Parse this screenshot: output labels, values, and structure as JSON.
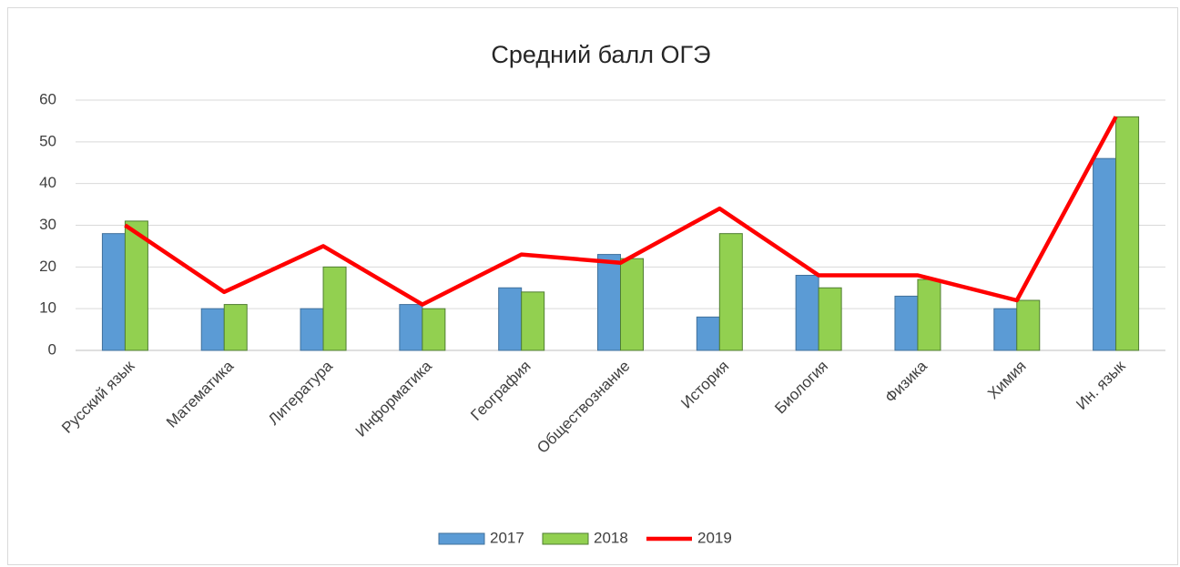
{
  "chart_data": {
    "type": "bar",
    "title": "Средний балл ОГЭ",
    "categories": [
      "Русский язык",
      "Математика",
      "Литература",
      "Информатика",
      "География",
      "Обществознание",
      "История",
      "Биология",
      "Физика",
      "Химия",
      "Ин. язык"
    ],
    "series": [
      {
        "name": "2017",
        "type": "bar",
        "color": "#5b9bd5",
        "values": [
          28,
          10,
          10,
          11,
          15,
          23,
          8,
          18,
          13,
          10,
          46
        ]
      },
      {
        "name": "2018",
        "type": "bar",
        "color": "#92d050",
        "values": [
          31,
          11,
          20,
          10,
          14,
          22,
          28,
          15,
          17,
          12,
          56
        ]
      },
      {
        "name": "2019",
        "type": "line",
        "color": "#ff0000",
        "values": [
          30,
          14,
          25,
          11,
          23,
          21,
          34,
          18,
          18,
          12,
          56
        ]
      }
    ],
    "ylim": [
      0,
      60
    ],
    "yticks": [
      0,
      10,
      20,
      30,
      40,
      50,
      60
    ],
    "grid": true,
    "legend": "bottom"
  }
}
